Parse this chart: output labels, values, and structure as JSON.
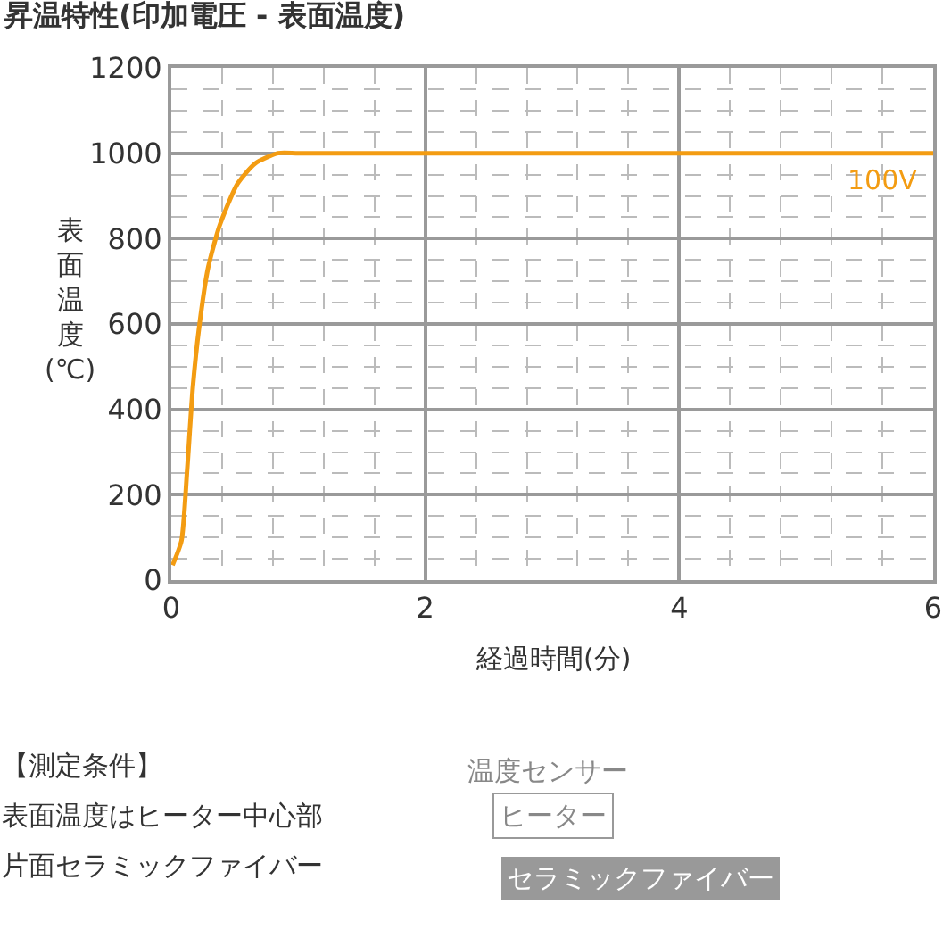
{
  "chart_data": {
    "type": "line",
    "title": "昇温特性(印加電圧 - 表面温度)",
    "xlabel": "経過時間(分)",
    "ylabel": "表面温度(℃)",
    "series": [
      {
        "name": "100V",
        "color": "#f39c12",
        "x": [
          0.01,
          0.08,
          0.125,
          0.17,
          0.22,
          0.29,
          0.38,
          0.52,
          0.66,
          0.84,
          1,
          2,
          3,
          4,
          5,
          6
        ],
        "values": [
          35,
          92,
          259,
          453,
          594,
          732,
          830,
          928,
          976,
          1000,
          1000,
          1000,
          1000,
          1000,
          1000,
          1000
        ]
      }
    ],
    "xlim": [
      0,
      6
    ],
    "xticks": [
      0,
      2,
      4,
      6
    ],
    "ylim": [
      0,
      1200
    ],
    "yticks": [
      0,
      200,
      400,
      600,
      800,
      1000,
      1200
    ],
    "grid": true,
    "legend": false,
    "marker": "none",
    "line_style": "solid",
    "annotations": [
      "【測定条件】",
      "表面温度はヒーター中心部",
      "片面セラミックファイバー",
      "温度センサー",
      "ヒーター",
      "セラミックファイバー"
    ]
  }
}
